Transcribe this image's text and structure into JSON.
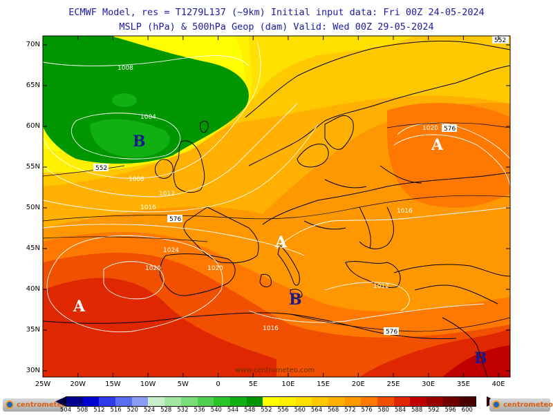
{
  "header": {
    "line1": "ECMWF Model, res = T1279L137 (~9km)    Initial input data: Fri 00Z 24-05-2024",
    "line2": "MSLP (hPa) & 500hPa Geop (dam)  Valid: Wed 00Z 29-05-2024"
  },
  "map": {
    "lat_labels": [
      "70N",
      "65N",
      "60N",
      "55N",
      "50N",
      "45N",
      "40N",
      "35N",
      "30N"
    ],
    "lon_labels": [
      "25W",
      "20W",
      "15W",
      "10W",
      "5W",
      "0",
      "5E",
      "10E",
      "15E",
      "20E",
      "25E",
      "30E",
      "35E",
      "40E"
    ],
    "pressure_labels": [
      "1008",
      "1004",
      "1008",
      "1012",
      "1016",
      "1024",
      "1020",
      "1020",
      "1016",
      "1016",
      "1020",
      "1012"
    ],
    "geopotential_labels": [
      "552",
      "552",
      "576",
      "576",
      "576"
    ],
    "centers": [
      {
        "letter": "B",
        "kind": "low",
        "color": "#1a1a8c"
      },
      {
        "letter": "A",
        "kind": "high",
        "color": "#ffffff"
      },
      {
        "letter": "A",
        "kind": "high",
        "color": "#ffffff"
      },
      {
        "letter": "A",
        "kind": "high",
        "color": "#ffffff"
      },
      {
        "letter": "B",
        "kind": "low",
        "color": "#1a1a8c"
      },
      {
        "letter": "B",
        "kind": "low",
        "color": "#1a1a8c"
      }
    ],
    "watermark": "www.centrometeo.com"
  },
  "colorbar": {
    "labels": [
      "504",
      "508",
      "512",
      "516",
      "520",
      "524",
      "528",
      "532",
      "536",
      "540",
      "544",
      "548",
      "552",
      "556",
      "560",
      "564",
      "568",
      "572",
      "576",
      "580",
      "584",
      "588",
      "592",
      "596",
      "600"
    ],
    "colors": [
      "#00008c",
      "#0000d0",
      "#2d3ce8",
      "#5a6cf0",
      "#8a9cf4",
      "#c8f0c8",
      "#a0e8a0",
      "#78dc78",
      "#50d050",
      "#28c428",
      "#10b010",
      "#009600",
      "#ffff00",
      "#fff000",
      "#ffe000",
      "#ffc800",
      "#ffb000",
      "#ff9800",
      "#ff7800",
      "#f05000",
      "#e02800",
      "#c00000",
      "#980000",
      "#700000",
      "#480000"
    ]
  },
  "logos": {
    "left": "centrometeo",
    "right": "centrometeo"
  }
}
